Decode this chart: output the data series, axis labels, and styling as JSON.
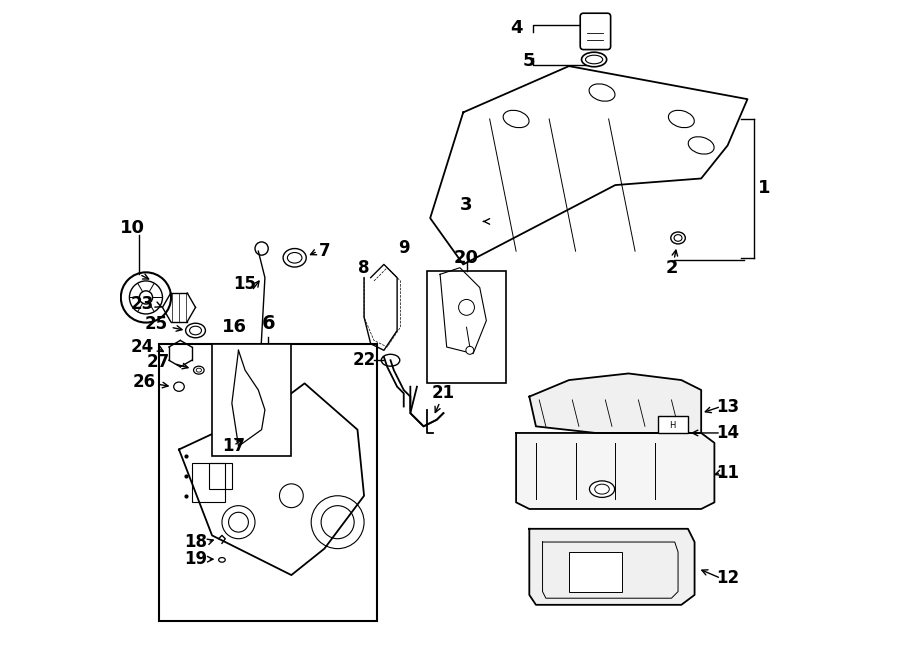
{
  "title": "",
  "bg_color": "#ffffff",
  "line_color": "#000000",
  "figsize": [
    9.0,
    6.61
  ],
  "dpi": 100
}
